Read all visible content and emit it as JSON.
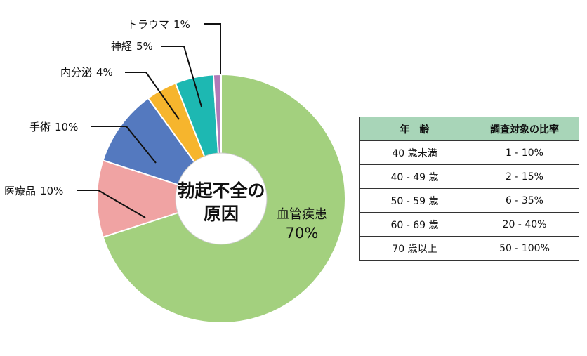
{
  "chart_data": {
    "type": "pie",
    "style": "donut",
    "center_label_lines": [
      "勃起不全の",
      "原因"
    ],
    "slices": [
      {
        "label": "血管疾患",
        "value": 70,
        "value_text": "70%",
        "color": "#a3d07e"
      },
      {
        "label": "医療品",
        "value": 10,
        "value_text": "10%",
        "color": "#f0a3a3"
      },
      {
        "label": "手術",
        "value": 10,
        "value_text": "10%",
        "color": "#5479bf"
      },
      {
        "label": "内分泌",
        "value": 4,
        "value_text": "4%",
        "color": "#f6b52d"
      },
      {
        "label": "神経",
        "value": 5,
        "value_text": "5%",
        "color": "#1db8b2"
      },
      {
        "label": "トラウマ",
        "value": 1,
        "value_text": "1%",
        "color": "#b07ab8"
      }
    ]
  },
  "table": {
    "headers": [
      "年　齢",
      "調査対象の比率"
    ],
    "rows": [
      [
        "40 歳未満",
        "1 - 10%"
      ],
      [
        "40 - 49 歳",
        "2 - 15%"
      ],
      [
        "50 - 59 歳",
        "6 - 35%"
      ],
      [
        "60 - 69 歳",
        "20 - 40%"
      ],
      [
        "70 歳以上",
        "50 - 100%"
      ]
    ],
    "header_color": "#a8d5b8"
  }
}
